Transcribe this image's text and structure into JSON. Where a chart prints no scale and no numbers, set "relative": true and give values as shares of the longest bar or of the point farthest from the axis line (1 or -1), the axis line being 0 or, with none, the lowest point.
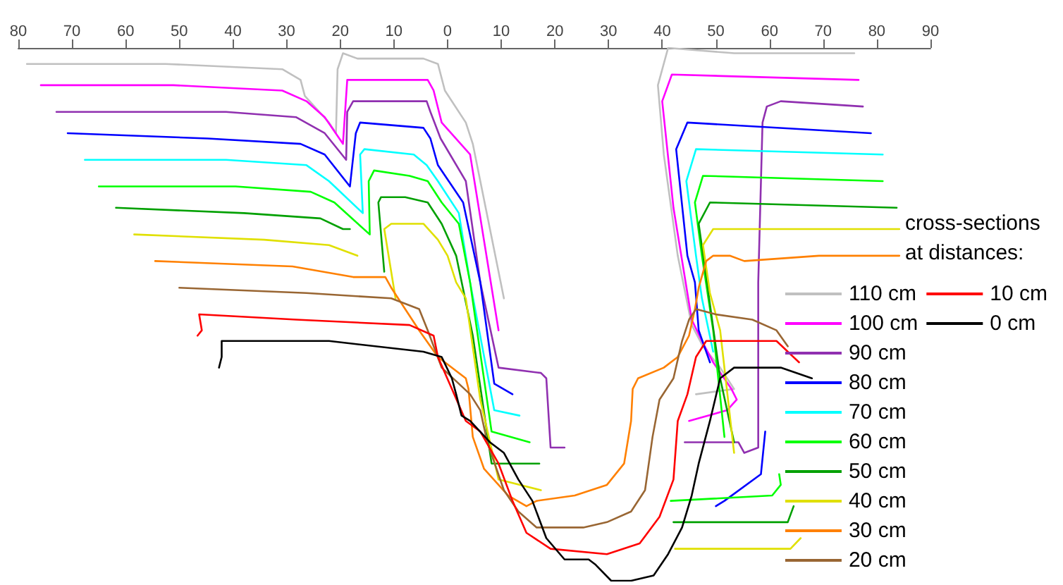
{
  "chart_data": {
    "type": "line",
    "relative": true,
    "legend_title": "cross-sections at distances:",
    "legend": "right",
    "grid": false,
    "tick_labels": "x",
    "marker": "none",
    "line_style": "solid",
    "xlim": [
      -80,
      90
    ],
    "xticks": [
      {
        "value": -80,
        "label": "80"
      },
      {
        "value": -70,
        "label": "70"
      },
      {
        "value": -60,
        "label": "60"
      },
      {
        "value": -50,
        "label": "50"
      },
      {
        "value": -40,
        "label": "40"
      },
      {
        "value": -30,
        "label": "30"
      },
      {
        "value": -20,
        "label": "20"
      },
      {
        "value": -10,
        "label": "10"
      },
      0,
      10,
      20,
      30,
      40,
      50,
      60,
      70,
      80,
      90
    ],
    "series": [
      {
        "name": "110 cm",
        "color": "#c0c0c0",
        "x": [
          -78.4,
          -52.6,
          -30.8,
          -27.4,
          -26.6,
          -22.1,
          -20.8,
          -20.5,
          -19.5,
          -16.8,
          -4.5,
          -1.8,
          -0.5,
          3.4,
          4.7,
          6.1,
          10.5,
          null,
          46.3,
          53.4,
          50.8,
          47.6,
          45.5,
          42.9,
          40.3,
          39.2,
          41.1,
          53.4,
          75.8
        ],
        "values": [
          0.97,
          0.97,
          0.96,
          0.94,
          0.91,
          0.86,
          0.84,
          0.96,
          0.99,
          0.98,
          0.98,
          0.97,
          0.92,
          0.86,
          0.82,
          0.75,
          0.53,
          null,
          0.35,
          0.36,
          0.4,
          0.44,
          0.48,
          0.61,
          0.8,
          0.93,
          1.0,
          0.99,
          0.99
        ]
      },
      {
        "name": "100 cm",
        "color": "#ff00ff",
        "x": [
          -75.8,
          -51.1,
          -30.8,
          -26.3,
          -22.9,
          -19.5,
          -18.7,
          -18.2,
          -3.7,
          -2.6,
          -1.1,
          4.2,
          9.5,
          null,
          45.0,
          52.1,
          53.9,
          52.9,
          49.5,
          47.4,
          45.5,
          42.1,
          40.0,
          41.8,
          76.6
        ],
        "values": [
          0.93,
          0.93,
          0.92,
          0.9,
          0.87,
          0.82,
          0.94,
          0.94,
          0.94,
          0.92,
          0.86,
          0.8,
          0.47,
          null,
          0.3,
          0.32,
          0.34,
          0.36,
          0.41,
          0.45,
          0.49,
          0.7,
          0.9,
          0.95,
          0.94
        ]
      },
      {
        "name": "90 cm",
        "color": "#9030b0",
        "x": [
          -72.9,
          -41.3,
          -28.2,
          -22.9,
          -18.9,
          -18.7,
          -17.6,
          -3.9,
          -3.2,
          -1.3,
          3.4,
          6.1,
          9.5,
          17.4,
          18.4,
          19.2,
          21.8,
          null,
          44.2,
          54.2,
          55.3,
          57.9,
          57.9,
          58.7,
          59.5,
          62.1,
          77.4
        ],
        "values": [
          0.88,
          0.88,
          0.87,
          0.84,
          0.79,
          0.88,
          0.9,
          0.9,
          0.88,
          0.83,
          0.75,
          0.56,
          0.4,
          0.39,
          0.38,
          0.25,
          0.25,
          null,
          0.26,
          0.26,
          0.24,
          0.25,
          0.56,
          0.86,
          0.89,
          0.9,
          0.89
        ]
      },
      {
        "name": "80 cm",
        "color": "#0000ff",
        "x": [
          -70.8,
          -44.7,
          -27.4,
          -22.9,
          -18.2,
          -17.1,
          -16.3,
          -4.5,
          -3.2,
          -1.8,
          2.9,
          6.1,
          8.7,
          12.1,
          null,
          50.0,
          51.6,
          58.4,
          59.2,
          null,
          48.9,
          46.8,
          46.1,
          44.7,
          42.6,
          44.7,
          78.9
        ],
        "values": [
          0.84,
          0.83,
          0.82,
          0.8,
          0.74,
          0.84,
          0.86,
          0.85,
          0.83,
          0.78,
          0.71,
          0.56,
          0.37,
          0.35,
          null,
          0.14,
          0.15,
          0.2,
          0.28,
          null,
          0.41,
          0.47,
          0.56,
          0.61,
          0.81,
          0.86,
          0.84
        ]
      },
      {
        "name": "70 cm",
        "color": "#00ffff",
        "x": [
          -67.6,
          -41.3,
          -26.3,
          -22.1,
          -15.8,
          -16.3,
          -15.5,
          -6.3,
          -3.9,
          -1.8,
          2.1,
          4.2,
          8.7,
          13.4,
          null,
          49.5,
          47.4,
          46.3,
          44.5,
          46.3,
          81.1
        ],
        "values": [
          0.79,
          0.79,
          0.78,
          0.75,
          0.69,
          0.8,
          0.81,
          0.8,
          0.78,
          0.75,
          0.69,
          0.56,
          0.32,
          0.31,
          null,
          0.43,
          0.53,
          0.61,
          0.75,
          0.81,
          0.8
        ]
      },
      {
        "name": "60 cm",
        "color": "#00ff00",
        "x": [
          -65.0,
          -39.5,
          -25.5,
          -21.1,
          -14.5,
          -14.7,
          -13.7,
          -7.1,
          -3.7,
          -1.1,
          2.1,
          4.2,
          8.2,
          15.3,
          null,
          41.6,
          60.5,
          62.1,
          61.8,
          null,
          51.6,
          49.5,
          47.4,
          46.1,
          47.6,
          81.1
        ],
        "values": [
          0.74,
          0.74,
          0.73,
          0.71,
          0.65,
          0.75,
          0.77,
          0.76,
          0.75,
          0.71,
          0.67,
          0.56,
          0.28,
          0.26,
          null,
          0.15,
          0.16,
          0.18,
          0.2,
          null,
          0.27,
          0.47,
          0.61,
          0.71,
          0.76,
          0.75
        ]
      },
      {
        "name": "50 cm",
        "color": "#00a000",
        "x": [
          -61.8,
          -37.9,
          -23.7,
          -19.5,
          -18.2,
          null,
          -11.8,
          -12.9,
          -12.4,
          -7.9,
          -3.7,
          -1.1,
          1.6,
          4.7,
          8.2,
          17.1,
          null,
          42.1,
          63.4,
          64.5,
          null,
          53.4,
          50.8,
          48.2,
          46.8,
          48.9,
          83.7
        ],
        "values": [
          0.7,
          0.69,
          0.68,
          0.66,
          0.66,
          null,
          0.58,
          0.71,
          0.72,
          0.72,
          0.71,
          0.67,
          0.61,
          0.46,
          0.22,
          0.22,
          null,
          0.11,
          0.11,
          0.14,
          null,
          0.26,
          0.38,
          0.57,
          0.67,
          0.71,
          0.7
        ]
      },
      {
        "name": "40 cm",
        "color": "#e0e000",
        "x": [
          -58.4,
          -34.2,
          -22.1,
          -16.8,
          null,
          -9.7,
          -11.8,
          -10.5,
          -4.5,
          -1.8,
          0.0,
          1.6,
          3.4,
          6.1,
          9.5,
          17.4,
          null,
          42.4,
          63.9,
          65.8,
          null,
          53.4,
          50.8,
          48.9,
          47.6,
          49.5,
          84.2
        ],
        "values": [
          0.65,
          0.64,
          0.63,
          0.61,
          null,
          0.53,
          0.66,
          0.67,
          0.67,
          0.64,
          0.61,
          0.56,
          0.53,
          0.34,
          0.19,
          0.17,
          null,
          0.06,
          0.06,
          0.08,
          null,
          0.24,
          0.47,
          0.54,
          0.63,
          0.66,
          0.66
        ]
      },
      {
        "name": "30 cm",
        "color": "#ff8000",
        "x": [
          -54.5,
          -28.9,
          -17.6,
          -11.6,
          -10.5,
          -5.3,
          -1.8,
          3.4,
          3.9,
          4.7,
          6.8,
          11.3,
          14.7,
          16.6,
          23.7,
          29.7,
          32.9,
          34.2,
          34.5,
          35.5,
          40.3,
          42.9,
          45.0,
          46.1,
          46.8,
          48.2,
          49.5,
          52.6,
          55.3,
          69.2,
          84.2
        ],
        "values": [
          0.6,
          0.59,
          0.57,
          0.57,
          0.55,
          0.47,
          0.42,
          0.38,
          0.36,
          0.27,
          0.21,
          0.16,
          0.14,
          0.15,
          0.16,
          0.18,
          0.22,
          0.3,
          0.36,
          0.38,
          0.4,
          0.42,
          0.46,
          0.51,
          0.55,
          0.6,
          0.61,
          0.61,
          0.6,
          0.61,
          0.61
        ]
      },
      {
        "name": "20 cm",
        "color": "#996633",
        "x": [
          -50.0,
          -26.3,
          -10.5,
          -5.3,
          -3.7,
          -1.1,
          4.2,
          6.1,
          7.4,
          10.5,
          13.2,
          16.6,
          21.8,
          25.3,
          29.7,
          34.2,
          36.8,
          38.2,
          39.5,
          42.1,
          43.7,
          45.0,
          46.3,
          50.0,
          56.8,
          61.3,
          63.4
        ],
        "values": [
          0.55,
          0.54,
          0.53,
          0.51,
          0.47,
          0.4,
          0.35,
          0.32,
          0.26,
          0.17,
          0.13,
          0.1,
          0.1,
          0.1,
          0.11,
          0.13,
          0.17,
          0.27,
          0.34,
          0.38,
          0.45,
          0.49,
          0.51,
          0.5,
          0.49,
          0.47,
          0.44
        ]
      },
      {
        "name": "10 cm",
        "color": "#ff0000",
        "x": [
          -46.6,
          -45.8,
          -46.3,
          -28.2,
          -7.1,
          -2.6,
          -1.8,
          0.8,
          3.4,
          6.1,
          9.5,
          12.1,
          14.7,
          19.2,
          29.7,
          35.8,
          39.5,
          42.1,
          42.9,
          44.7,
          46.3,
          48.2,
          57.9,
          61.3,
          65.5
        ],
        "values": [
          0.46,
          0.47,
          0.5,
          0.49,
          0.48,
          0.46,
          0.42,
          0.36,
          0.3,
          0.28,
          0.22,
          0.15,
          0.09,
          0.06,
          0.05,
          0.07,
          0.12,
          0.19,
          0.3,
          0.35,
          0.42,
          0.45,
          0.45,
          0.45,
          0.41
        ]
      },
      {
        "name": "0 cm",
        "color": "#000000",
        "x": [
          -42.6,
          -42.1,
          -42.1,
          -22.1,
          -4.5,
          -1.1,
          0.8,
          1.6,
          2.6,
          4.2,
          7.9,
          10.5,
          13.2,
          15.8,
          18.4,
          21.8,
          26.3,
          27.6,
          30.5,
          34.2,
          38.4,
          41.1,
          43.7,
          45.5,
          46.8,
          48.9,
          50.8,
          53.4,
          56.1,
          62.1,
          67.9
        ],
        "values": [
          0.4,
          0.42,
          0.45,
          0.45,
          0.43,
          0.42,
          0.38,
          0.35,
          0.31,
          0.3,
          0.26,
          0.24,
          0.19,
          0.15,
          0.08,
          0.04,
          0.04,
          0.03,
          0.0,
          0.0,
          0.01,
          0.05,
          0.1,
          0.16,
          0.22,
          0.3,
          0.38,
          0.4,
          0.4,
          0.4,
          0.38
        ]
      }
    ]
  }
}
